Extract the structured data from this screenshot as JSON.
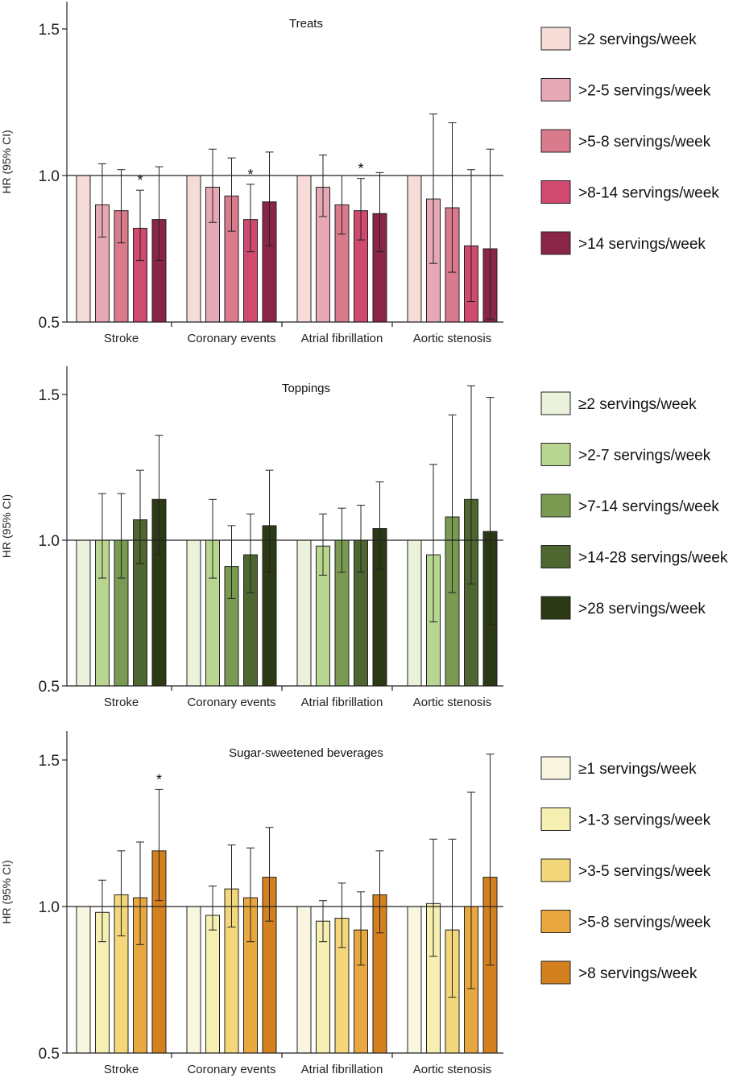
{
  "chart_data": [
    {
      "type": "bar",
      "title": "Treats",
      "ylabel": "HR (95% CI)",
      "ylim": [
        0.5,
        1.6
      ],
      "yticks": [
        0.5,
        1.0,
        1.5
      ],
      "ytick_labels": [
        "0.5",
        "1.0",
        "1.5"
      ],
      "reference_line": 1.0,
      "categories": [
        "Stroke",
        "Coronary events",
        "Atrial fibrillation",
        "Aortic stenosis"
      ],
      "series": [
        {
          "name": "≥2  servings/week",
          "color": "#f5dcd6",
          "values": [
            1.0,
            1.0,
            1.0,
            1.0
          ],
          "ci_low": [
            null,
            null,
            null,
            null
          ],
          "ci_high": [
            null,
            null,
            null,
            null
          ],
          "significant": [
            false,
            false,
            false,
            false
          ]
        },
        {
          "name": ">2-5 servings/week",
          "color": "#e6a8b4",
          "values": [
            0.9,
            0.96,
            0.96,
            0.92
          ],
          "ci_low": [
            0.79,
            0.84,
            0.86,
            0.7
          ],
          "ci_high": [
            1.04,
            1.09,
            1.07,
            1.21
          ],
          "significant": [
            false,
            false,
            false,
            false
          ]
        },
        {
          "name": ">5-8 servings/week",
          "color": "#d97a8d",
          "values": [
            0.88,
            0.93,
            0.9,
            0.89
          ],
          "ci_low": [
            0.77,
            0.81,
            0.8,
            0.67
          ],
          "ci_high": [
            1.02,
            1.06,
            1.0,
            1.18
          ],
          "significant": [
            false,
            false,
            false,
            false
          ]
        },
        {
          "name": ">8-14 servings/week",
          "color": "#cf4a6e",
          "values": [
            0.82,
            0.85,
            0.88,
            0.76
          ],
          "ci_low": [
            0.71,
            0.74,
            0.78,
            0.57
          ],
          "ci_high": [
            0.95,
            0.97,
            0.99,
            1.02
          ],
          "significant": [
            true,
            true,
            true,
            false
          ]
        },
        {
          "name": ">14 servings/week",
          "color": "#8b2548",
          "values": [
            0.85,
            0.91,
            0.87,
            0.75
          ],
          "ci_low": [
            0.71,
            0.76,
            0.74,
            0.51
          ],
          "ci_high": [
            1.03,
            1.08,
            1.01,
            1.09
          ],
          "significant": [
            false,
            false,
            false,
            false
          ]
        }
      ],
      "significance_marker": "*"
    },
    {
      "type": "bar",
      "title": "Toppings",
      "ylabel": "HR (95% CI)",
      "ylim": [
        0.5,
        1.6
      ],
      "yticks": [
        0.5,
        1.0,
        1.5
      ],
      "ytick_labels": [
        "0.5",
        "1.0",
        "1.5"
      ],
      "reference_line": 1.0,
      "categories": [
        "Stroke",
        "Coronary events",
        "Atrial fibrillation",
        "Aortic stenosis"
      ],
      "series": [
        {
          "name": "≥2  servings/week",
          "color": "#ebf2db",
          "values": [
            1.0,
            1.0,
            1.0,
            1.0
          ],
          "ci_low": [
            null,
            null,
            null,
            null
          ],
          "ci_high": [
            null,
            null,
            null,
            null
          ],
          "significant": [
            false,
            false,
            false,
            false
          ]
        },
        {
          "name": ">2-7 servings/week",
          "color": "#b8d690",
          "values": [
            1.0,
            1.0,
            0.98,
            0.95
          ],
          "ci_low": [
            0.87,
            0.87,
            0.88,
            0.72
          ],
          "ci_high": [
            1.16,
            1.14,
            1.09,
            1.26
          ],
          "significant": [
            false,
            false,
            false,
            false
          ]
        },
        {
          "name": ">7-14 servings/week",
          "color": "#7a9a52",
          "values": [
            1.0,
            0.91,
            1.0,
            1.08
          ],
          "ci_low": [
            0.87,
            0.8,
            0.89,
            0.82
          ],
          "ci_high": [
            1.16,
            1.05,
            1.11,
            1.43
          ],
          "significant": [
            false,
            false,
            false,
            false
          ]
        },
        {
          "name": ">14-28 servings/week",
          "color": "#4e6630",
          "values": [
            1.07,
            0.95,
            1.0,
            1.14
          ],
          "ci_low": [
            0.92,
            0.82,
            0.89,
            0.85
          ],
          "ci_high": [
            1.24,
            1.09,
            1.12,
            1.53
          ],
          "significant": [
            false,
            false,
            false,
            false
          ]
        },
        {
          "name": ">28 servings/week",
          "color": "#2b3a14",
          "values": [
            1.14,
            1.05,
            1.04,
            1.03
          ],
          "ci_low": [
            0.95,
            0.89,
            0.9,
            0.71
          ],
          "ci_high": [
            1.36,
            1.24,
            1.2,
            1.49
          ],
          "significant": [
            false,
            false,
            false,
            false
          ]
        }
      ],
      "significance_marker": "*"
    },
    {
      "type": "bar",
      "title": "Sugar-sweetened beverages",
      "ylabel": "HR (95% CI)",
      "ylim": [
        0.5,
        1.6
      ],
      "yticks": [
        0.5,
        1.0,
        1.5
      ],
      "ytick_labels": [
        "0.5",
        "1.0",
        "1.5"
      ],
      "reference_line": 1.0,
      "categories": [
        "Stroke",
        "Coronary events",
        "Atrial fibrillation",
        "Aortic stenosis"
      ],
      "series": [
        {
          "name": "≥1  servings/week",
          "color": "#f9f6e0",
          "values": [
            1.0,
            1.0,
            1.0,
            1.0
          ],
          "ci_low": [
            null,
            null,
            null,
            null
          ],
          "ci_high": [
            null,
            null,
            null,
            null
          ],
          "significant": [
            false,
            false,
            false,
            false
          ]
        },
        {
          "name": ">1-3 servings/week",
          "color": "#f6efb2",
          "values": [
            0.98,
            0.97,
            0.95,
            1.01
          ],
          "ci_low": [
            0.88,
            0.92,
            0.88,
            0.83
          ],
          "ci_high": [
            1.09,
            1.07,
            1.02,
            1.23
          ],
          "significant": [
            false,
            false,
            false,
            false
          ]
        },
        {
          "name": ">3-5 servings/week",
          "color": "#f3d77a",
          "values": [
            1.04,
            1.06,
            0.96,
            0.92
          ],
          "ci_low": [
            0.9,
            0.93,
            0.86,
            0.69
          ],
          "ci_high": [
            1.19,
            1.21,
            1.08,
            1.23
          ],
          "significant": [
            false,
            false,
            false,
            false
          ]
        },
        {
          "name": ">5-8 servings/week",
          "color": "#e9a83f",
          "values": [
            1.03,
            1.03,
            0.92,
            1.0
          ],
          "ci_low": [
            0.87,
            0.88,
            0.8,
            0.72
          ],
          "ci_high": [
            1.22,
            1.2,
            1.05,
            1.39
          ],
          "significant": [
            false,
            false,
            false,
            false
          ]
        },
        {
          "name": ">8 servings/week",
          "color": "#d4801f",
          "values": [
            1.19,
            1.1,
            1.04,
            1.1
          ],
          "ci_low": [
            1.02,
            0.95,
            0.91,
            0.8
          ],
          "ci_high": [
            1.4,
            1.27,
            1.19,
            1.52
          ],
          "significant": [
            true,
            false,
            false,
            false
          ]
        }
      ],
      "significance_marker": "*"
    }
  ]
}
